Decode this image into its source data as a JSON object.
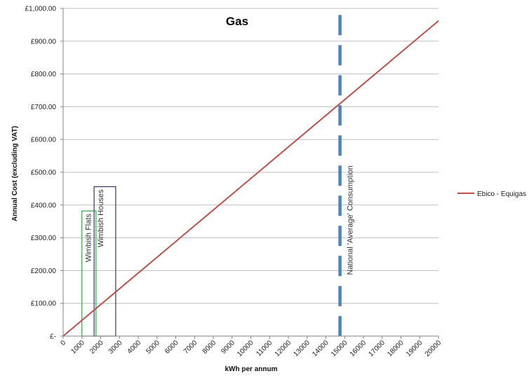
{
  "chart_data": {
    "type": "line",
    "title": "Gas",
    "xlabel": "kWh per annum",
    "ylabel": "Annual Cost (excluding VAT)",
    "xlim": [
      0,
      20000
    ],
    "ylim": [
      0,
      1000
    ],
    "x_ticks": [
      0,
      1000,
      2000,
      3000,
      4000,
      5000,
      6000,
      7000,
      8000,
      9000,
      10000,
      11000,
      12000,
      13000,
      14000,
      15000,
      16000,
      17000,
      18000,
      19000,
      20000
    ],
    "x_tick_labels": [
      "0",
      "1000",
      "2000",
      "3000",
      "4000",
      "5000",
      "6000",
      "7000",
      "8000",
      "9000",
      "10000",
      "11000",
      "12000",
      "13000",
      "14000",
      "15000",
      "16000",
      "17000",
      "18000",
      "19000",
      "20000"
    ],
    "y_ticks": [
      0,
      100,
      200,
      300,
      400,
      500,
      600,
      700,
      800,
      900,
      1000
    ],
    "y_tick_labels": [
      "£-",
      "£100.00",
      "£200.00",
      "£300.00",
      "£400.00",
      "£500.00",
      "£600.00",
      "£700.00",
      "£800.00",
      "£900.00",
      "£1,000.00"
    ],
    "grid": "horizontal",
    "legend_position": "right",
    "series": [
      {
        "name": "Ebico - Equigas",
        "color": "#c0504d",
        "x": [
          0,
          20000
        ],
        "y": [
          0,
          962
        ]
      }
    ],
    "annotations": {
      "vline": {
        "label": "National 'Average' Consumption",
        "x": 14750,
        "y_top": 980,
        "color": "#4f81bd",
        "style": "dashed"
      },
      "boxes": [
        {
          "label": "Wimbish Flats",
          "x0": 1000,
          "x1": 1750,
          "y0": 0,
          "y1": 382,
          "color": "#2eaa4c"
        },
        {
          "label": "Wimbish Houses",
          "x0": 1650,
          "x1": 2800,
          "y0": 0,
          "y1": 456,
          "color": "#3b3560"
        }
      ]
    }
  }
}
